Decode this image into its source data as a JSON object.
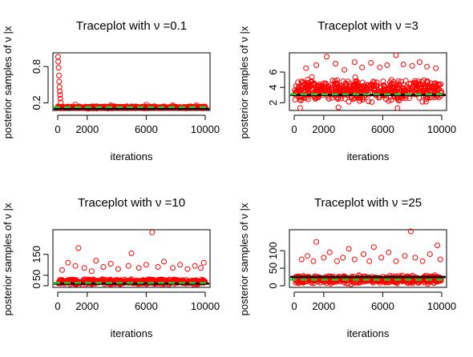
{
  "chart_data": [
    {
      "type": "scatter",
      "title": "Traceplot with ν =0.1",
      "xlabel": "iterations",
      "ylabel": "posterior samples of ν |x",
      "xlim": [
        0,
        10000
      ],
      "ylim": [
        0.1,
        1.0
      ],
      "xticks": [
        "0",
        "2000",
        "6000",
        "10000"
      ],
      "yticks": [
        "0.2",
        "0.8"
      ],
      "ytick_values": [
        0.2,
        0.8
      ],
      "band": [
        0.1,
        0.15
      ],
      "outliers": [
        [
          20,
          0.96
        ],
        [
          40,
          0.88
        ],
        [
          60,
          0.78
        ],
        [
          80,
          0.65
        ],
        [
          100,
          0.55
        ],
        [
          120,
          0.46
        ],
        [
          140,
          0.39
        ],
        [
          160,
          0.33
        ],
        [
          180,
          0.27
        ],
        [
          200,
          0.21
        ]
      ],
      "high_points": [
        [
          1200,
          0.17
        ],
        [
          3600,
          0.16
        ],
        [
          6000,
          0.17
        ],
        [
          7800,
          0.16
        ],
        [
          9400,
          0.16
        ]
      ],
      "true_value": 0.1,
      "posterior_mean": 0.13,
      "series_color": "#ff0000",
      "line_colors": {
        "true_value": "#000000",
        "posterior_mean": "#22cc22"
      }
    },
    {
      "type": "scatter",
      "title": "Traceplot with ν =3",
      "xlabel": "iterations",
      "ylabel": "posterior samples of ν |x",
      "xlim": [
        0,
        10000
      ],
      "ylim": [
        1.2,
        8.3
      ],
      "xticks": [
        "0",
        "2000",
        "6000",
        "10000"
      ],
      "yticks": [
        "2",
        "4",
        "6"
      ],
      "ytick_values": [
        2,
        4,
        6
      ],
      "band": [
        1.6,
        5.6
      ],
      "outliers": [
        [
          800,
          6.5
        ],
        [
          1500,
          6.9
        ],
        [
          2200,
          8.0
        ],
        [
          2800,
          7.1
        ],
        [
          3400,
          6.3
        ],
        [
          4100,
          7.3
        ],
        [
          4600,
          6.6
        ],
        [
          5200,
          7.2
        ],
        [
          5800,
          6.6
        ],
        [
          6300,
          6.9
        ],
        [
          6900,
          8.2
        ],
        [
          7400,
          7.0
        ],
        [
          8000,
          6.8
        ],
        [
          8500,
          7.3
        ],
        [
          9000,
          6.7
        ],
        [
          9600,
          6.5
        ],
        [
          400,
          1.3
        ],
        [
          3000,
          1.4
        ],
        [
          7000,
          1.3
        ]
      ],
      "high_points": [],
      "true_value": 3,
      "posterior_mean": 3.1,
      "series_color": "#ff0000",
      "line_colors": {
        "true_value": "#000000",
        "posterior_mean": "#22cc22"
      }
    },
    {
      "type": "scatter",
      "title": "Traceplot with ν =10",
      "xlabel": "iterations",
      "ylabel": "posterior samples of ν |x",
      "xlim": [
        0,
        10000
      ],
      "ylim": [
        0,
        260
      ],
      "xticks": [
        "0",
        "2000",
        "6000",
        "10000"
      ],
      "yticks": [
        "0",
        "50",
        "150"
      ],
      "ytick_values": [
        0,
        50,
        150
      ],
      "band": [
        3,
        35
      ],
      "outliers": [
        [
          300,
          75
        ],
        [
          700,
          110
        ],
        [
          1200,
          95
        ],
        [
          1400,
          180
        ],
        [
          1800,
          85
        ],
        [
          2300,
          70
        ],
        [
          2600,
          120
        ],
        [
          3100,
          90
        ],
        [
          3600,
          105
        ],
        [
          4100,
          80
        ],
        [
          4800,
          95
        ],
        [
          5000,
          155
        ],
        [
          5500,
          85
        ],
        [
          6000,
          100
        ],
        [
          6400,
          255
        ],
        [
          6800,
          90
        ],
        [
          7200,
          115
        ],
        [
          7800,
          85
        ],
        [
          8300,
          100
        ],
        [
          8800,
          80
        ],
        [
          9300,
          95
        ],
        [
          9700,
          85
        ],
        [
          9900,
          110
        ]
      ],
      "high_points": [],
      "true_value": 10,
      "posterior_mean": 14,
      "series_color": "#ff0000",
      "line_colors": {
        "true_value": "#000000",
        "posterior_mean": "#22cc22"
      }
    },
    {
      "type": "scatter",
      "title": "Traceplot with ν =25",
      "xlabel": "iterations",
      "ylabel": "posterior samples of ν |x",
      "xlim": [
        0,
        10000
      ],
      "ylim": [
        0,
        155
      ],
      "xticks": [
        "0",
        "2000",
        "6000",
        "10000"
      ],
      "yticks": [
        "0",
        "50",
        "100"
      ],
      "ytick_values": [
        0,
        50,
        100
      ],
      "band": [
        3,
        32
      ],
      "outliers": [
        [
          500,
          75
        ],
        [
          900,
          85
        ],
        [
          1300,
          70
        ],
        [
          1500,
          125
        ],
        [
          2000,
          80
        ],
        [
          2400,
          95
        ],
        [
          2900,
          70
        ],
        [
          3300,
          80
        ],
        [
          3700,
          105
        ],
        [
          4100,
          75
        ],
        [
          4700,
          90
        ],
        [
          5100,
          70
        ],
        [
          5400,
          110
        ],
        [
          5900,
          80
        ],
        [
          6400,
          95
        ],
        [
          6900,
          70
        ],
        [
          7500,
          85
        ],
        [
          7900,
          155
        ],
        [
          8200,
          80
        ],
        [
          8700,
          70
        ],
        [
          9200,
          90
        ],
        [
          9700,
          115
        ],
        [
          9900,
          75
        ]
      ],
      "high_points": [],
      "true_value": 25,
      "posterior_mean": 17,
      "series_color": "#ff0000",
      "line_colors": {
        "true_value": "#000000",
        "posterior_mean": "#22cc22"
      }
    }
  ]
}
